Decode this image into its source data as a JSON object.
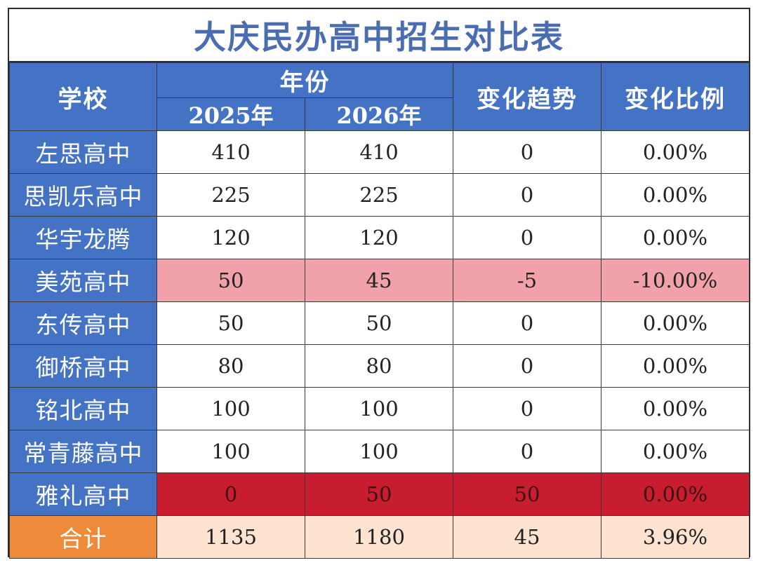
{
  "title": "大庆民办高中招生对比表",
  "headers": {
    "school": "学校",
    "year_group": "年份",
    "year_2025": "2025年",
    "year_2026": "2026年",
    "trend": "变化趋势",
    "ratio": "变化比例"
  },
  "rows": [
    {
      "school": "左思高中",
      "y2025": "410",
      "y2026": "410",
      "trend": "0",
      "ratio": "0.00%"
    },
    {
      "school": "思凯乐高中",
      "y2025": "225",
      "y2026": "225",
      "trend": "0",
      "ratio": "0.00%"
    },
    {
      "school": "华宇龙腾",
      "y2025": "120",
      "y2026": "120",
      "trend": "0",
      "ratio": "0.00%"
    },
    {
      "school": "美苑高中",
      "y2025": "50",
      "y2026": "45",
      "trend": "-5",
      "ratio": "-10.00%"
    },
    {
      "school": "东传高中",
      "y2025": "50",
      "y2026": "50",
      "trend": "0",
      "ratio": "0.00%"
    },
    {
      "school": "御桥高中",
      "y2025": "80",
      "y2026": "80",
      "trend": "0",
      "ratio": "0.00%"
    },
    {
      "school": "铭北高中",
      "y2025": "100",
      "y2026": "100",
      "trend": "0",
      "ratio": "0.00%"
    },
    {
      "school": "常青藤高中",
      "y2025": "100",
      "y2026": "100",
      "trend": "0",
      "ratio": "0.00%"
    },
    {
      "school": "雅礼高中",
      "y2025": "0",
      "y2026": "50",
      "trend": "50",
      "ratio": "0.00%"
    }
  ],
  "total": {
    "school": "合计",
    "y2025": "1135",
    "y2026": "1180",
    "trend": "45",
    "ratio": "3.96%"
  },
  "colors": {
    "header_blue": "#4472c4",
    "title_blue": "#4a6cb0",
    "decrease_pink": "#f0a1aa",
    "new_red": "#c81d2e",
    "total_orange": "#ee8a3a",
    "total_peach": "#fde3d0"
  }
}
